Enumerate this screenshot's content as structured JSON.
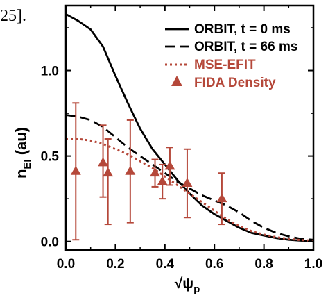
{
  "fragment_text": "25].",
  "chart_data": {
    "type": "line",
    "xlabel": "√ψp",
    "xlabel_main": "√ψ",
    "xlabel_sub": "p",
    "ylabel": "nEI (au)",
    "ylabel_main": "n",
    "ylabel_sub": "EI",
    "ylabel_unit": " (au)",
    "xlim": [
      0.0,
      1.0
    ],
    "ylim": [
      -0.05,
      1.38
    ],
    "xticks": [
      0.0,
      0.2,
      0.4,
      0.6,
      0.8,
      1.0
    ],
    "xtick_labels": [
      "0.0",
      "0.2",
      "0.4",
      "0.6",
      "0.8",
      "1.0"
    ],
    "yticks": [
      0.0,
      0.5,
      1.0
    ],
    "ytick_labels": [
      "0.0",
      "0.5",
      "1.0"
    ],
    "grid": false,
    "legend_position": "top-right",
    "series": [
      {
        "name": "ORBIT, t = 0 ms",
        "kind": "line",
        "style": "solid",
        "color": "#000000",
        "x": [
          0.0,
          0.05,
          0.1,
          0.15,
          0.2,
          0.25,
          0.3,
          0.35,
          0.4,
          0.45,
          0.5,
          0.55,
          0.6,
          0.65,
          0.7,
          0.75,
          0.8,
          0.85,
          0.9,
          0.95,
          1.0
        ],
        "y": [
          1.33,
          1.29,
          1.24,
          1.14,
          0.97,
          0.81,
          0.66,
          0.54,
          0.45,
          0.36,
          0.28,
          0.21,
          0.16,
          0.12,
          0.08,
          0.05,
          0.035,
          0.02,
          0.01,
          0.005,
          0.0
        ]
      },
      {
        "name": "ORBIT, t = 66 ms",
        "kind": "line",
        "style": "dashed",
        "color": "#000000",
        "x": [
          0.0,
          0.05,
          0.1,
          0.15,
          0.2,
          0.25,
          0.3,
          0.35,
          0.4,
          0.45,
          0.5,
          0.55,
          0.6,
          0.65,
          0.7,
          0.75,
          0.8,
          0.85,
          0.9,
          0.95,
          1.0
        ],
        "y": [
          0.74,
          0.73,
          0.71,
          0.67,
          0.61,
          0.55,
          0.5,
          0.45,
          0.4,
          0.35,
          0.31,
          0.27,
          0.24,
          0.21,
          0.17,
          0.12,
          0.08,
          0.05,
          0.03,
          0.015,
          0.01
        ]
      },
      {
        "name": "MSE-EFIT",
        "kind": "line",
        "style": "dotted",
        "color": "#b5483a",
        "x": [
          0.0,
          0.05,
          0.1,
          0.15,
          0.2,
          0.25,
          0.3,
          0.35,
          0.4,
          0.45,
          0.5,
          0.55,
          0.6,
          0.65,
          0.7,
          0.75,
          0.8,
          0.85,
          0.9,
          0.95,
          1.0
        ],
        "y": [
          0.6,
          0.6,
          0.59,
          0.57,
          0.54,
          0.51,
          0.47,
          0.43,
          0.38,
          0.33,
          0.28,
          0.23,
          0.18,
          0.13,
          0.09,
          0.06,
          0.04,
          0.025,
          0.015,
          0.008,
          0.005
        ]
      },
      {
        "name": "FIDA Density",
        "kind": "errorbar",
        "marker": "triangle-up",
        "color": "#b5483a",
        "x": [
          0.04,
          0.15,
          0.17,
          0.26,
          0.36,
          0.39,
          0.42,
          0.49,
          0.63
        ],
        "y": [
          0.41,
          0.46,
          0.4,
          0.41,
          0.4,
          0.35,
          0.44,
          0.34,
          0.25
        ],
        "yerr_low": [
          0.4,
          0.2,
          0.3,
          0.3,
          0.08,
          0.1,
          0.11,
          0.2,
          0.15
        ],
        "yerr_high": [
          0.4,
          0.22,
          0.2,
          0.3,
          0.08,
          0.1,
          0.11,
          0.2,
          0.15
        ]
      }
    ]
  }
}
